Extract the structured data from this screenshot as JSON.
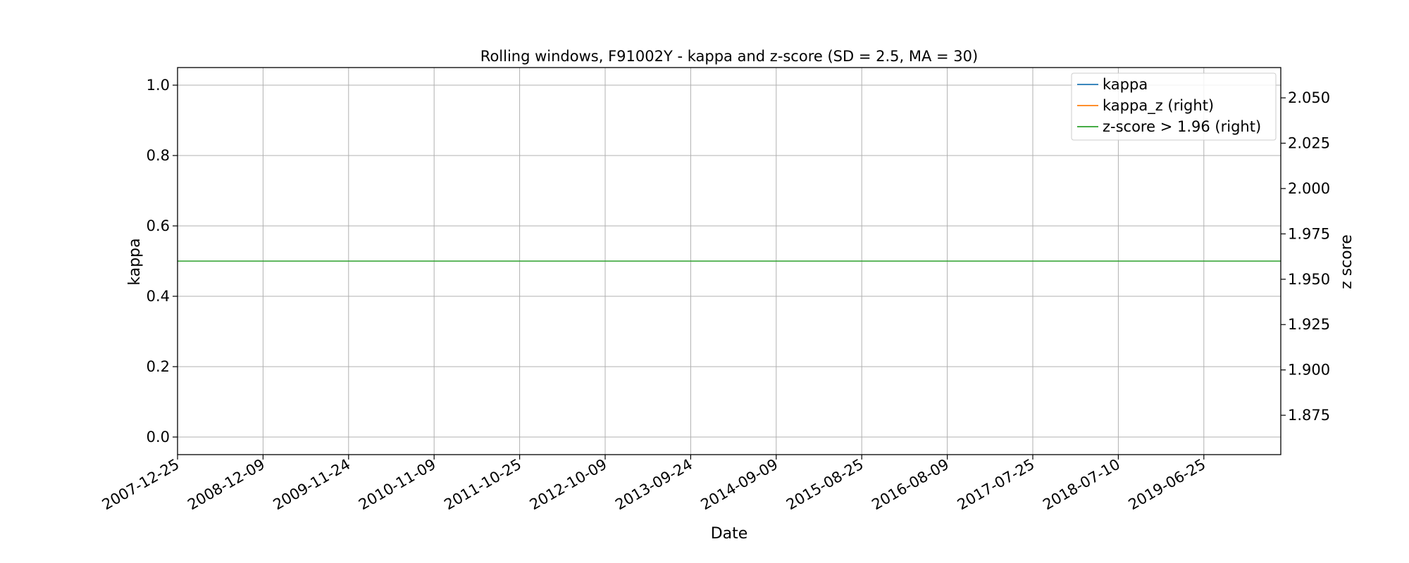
{
  "chart_data": {
    "type": "line",
    "title": "Rolling windows, F91002Y - kappa and z-score (SD = 2.5, MA = 30)",
    "xlabel": "Date",
    "ylabel": "kappa",
    "y2label": "z score",
    "x_ticks": [
      "2007-12-25",
      "2008-12-09",
      "2009-11-24",
      "2010-11-09",
      "2011-10-25",
      "2012-10-09",
      "2013-09-24",
      "2014-09-09",
      "2015-08-25",
      "2016-08-09",
      "2017-07-25",
      "2018-07-10",
      "2019-06-25"
    ],
    "y_ticks": [
      "0.0",
      "0.2",
      "0.4",
      "0.6",
      "0.8",
      "1.0"
    ],
    "y2_ticks": [
      "1.875",
      "1.900",
      "1.925",
      "1.950",
      "1.975",
      "2.000",
      "2.025",
      "2.050"
    ],
    "ylim": [
      -0.05,
      1.05
    ],
    "y2lim": [
      1.8533,
      2.0667
    ],
    "grid": true,
    "legend_position": "top-right",
    "series": [
      {
        "name": "kappa",
        "color": "#1f77b4",
        "axis": "left",
        "values": []
      },
      {
        "name": "kappa_z (right)",
        "color": "#ff7f0e",
        "axis": "right",
        "values": []
      },
      {
        "name": "z-score > 1.96 (right)",
        "color": "#2ca02c",
        "axis": "right",
        "x": [
          "2007-12-25",
          "2020-06-09"
        ],
        "values": [
          1.96,
          1.96
        ]
      }
    ]
  }
}
